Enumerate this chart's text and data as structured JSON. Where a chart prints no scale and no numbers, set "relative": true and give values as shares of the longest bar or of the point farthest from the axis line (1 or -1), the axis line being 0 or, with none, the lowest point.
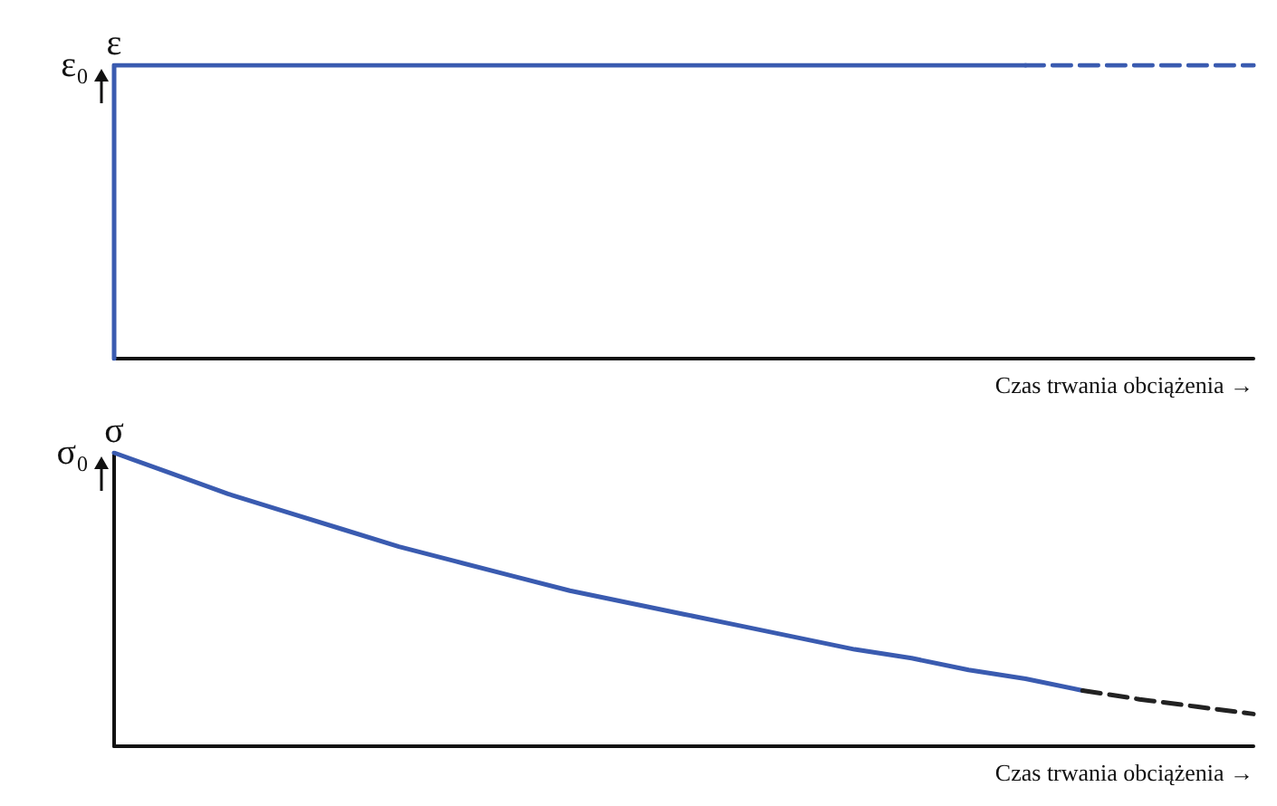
{
  "chart_data": [
    {
      "type": "line",
      "ylabel": "ε",
      "xlabel": "Czas trwania obciążenia →",
      "relative": true,
      "categories": [
        null,
        null,
        null,
        null,
        null,
        null,
        null,
        null,
        null,
        null,
        null,
        null,
        null,
        null,
        null,
        null,
        null,
        null,
        null,
        null,
        null
      ],
      "series": [
        {
          "type": "step",
          "color": "#3a5bb0",
          "line_style": "solid",
          "values": [
            0,
            1,
            1,
            1,
            1,
            1,
            1,
            1,
            1,
            1,
            1,
            1,
            1,
            1,
            1,
            1,
            1,
            null,
            null,
            null,
            null
          ]
        },
        {
          "color": "#3a5bb0",
          "line_style": "dashed",
          "values": [
            null,
            null,
            null,
            null,
            null,
            null,
            null,
            null,
            null,
            null,
            null,
            null,
            null,
            null,
            null,
            null,
            1,
            1,
            1,
            1,
            1
          ]
        }
      ],
      "annotations": [
        "ε₀"
      ]
    },
    {
      "type": "line",
      "ylabel": "σ",
      "xlabel": "Czas trwania obciążenia →",
      "relative": true,
      "categories": [
        null,
        null,
        null,
        null,
        null,
        null,
        null,
        null,
        null,
        null,
        null,
        null,
        null,
        null,
        null,
        null,
        null,
        null,
        null,
        null,
        null
      ],
      "series": [
        {
          "color": "#3a5bb0",
          "line_style": "solid",
          "values": [
            1,
            0.93,
            0.86,
            0.8,
            0.74,
            0.68,
            0.63,
            0.58,
            0.53,
            0.49,
            0.45,
            0.41,
            0.37,
            0.33,
            0.3,
            0.26,
            0.23,
            0.19,
            null,
            null,
            null
          ]
        },
        {
          "color": "#222222",
          "line_style": "dashed",
          "values": [
            null,
            null,
            null,
            null,
            null,
            null,
            null,
            null,
            null,
            null,
            null,
            null,
            null,
            null,
            null,
            null,
            null,
            0.19,
            0.16,
            0.135,
            0.11
          ]
        }
      ],
      "annotations": [
        "σ₀"
      ]
    }
  ]
}
